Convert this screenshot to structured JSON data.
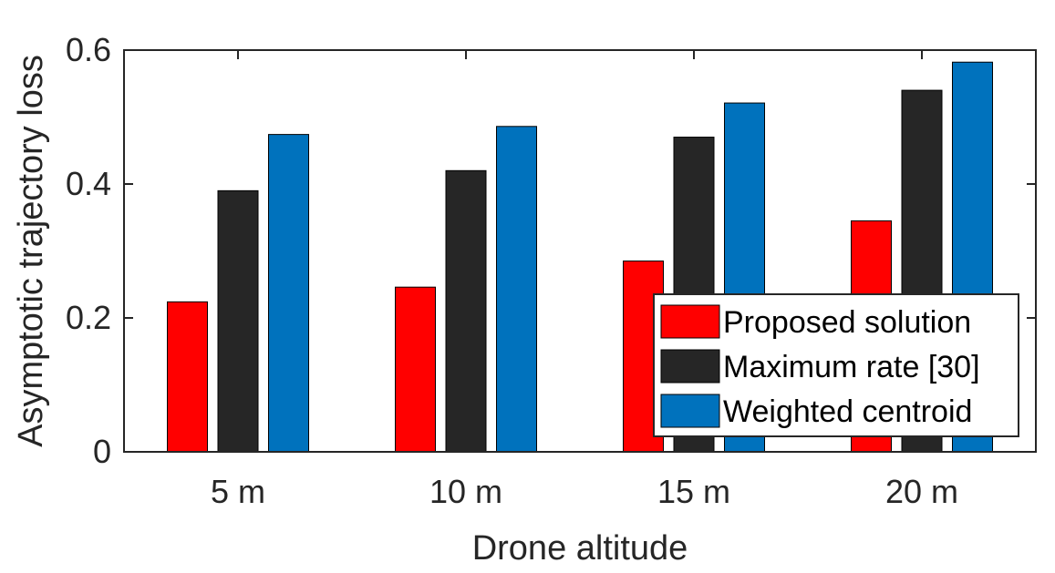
{
  "chart_data": {
    "type": "bar",
    "xlabel": "Drone altitude",
    "ylabel": "Asymptotic trajectory loss",
    "categories": [
      "5 m",
      "10 m",
      "15 m",
      "20 m"
    ],
    "ylim": [
      0,
      0.6
    ],
    "yticks": [
      0,
      0.2,
      0.4,
      0.6
    ],
    "ytick_labels": [
      "0",
      "0.2",
      "0.4",
      "0.6"
    ],
    "grid": false,
    "legend_position": "bottom-right",
    "series": [
      {
        "name": "Proposed solution",
        "color": "#ff0000",
        "values": [
          0.224,
          0.246,
          0.285,
          0.345
        ]
      },
      {
        "name": "Maximum rate [30]",
        "color": "#262626",
        "values": [
          0.39,
          0.42,
          0.47,
          0.54
        ]
      },
      {
        "name": "Weighted centroid",
        "color": "#0072bd",
        "values": [
          0.474,
          0.486,
          0.521,
          0.582
        ]
      }
    ]
  }
}
